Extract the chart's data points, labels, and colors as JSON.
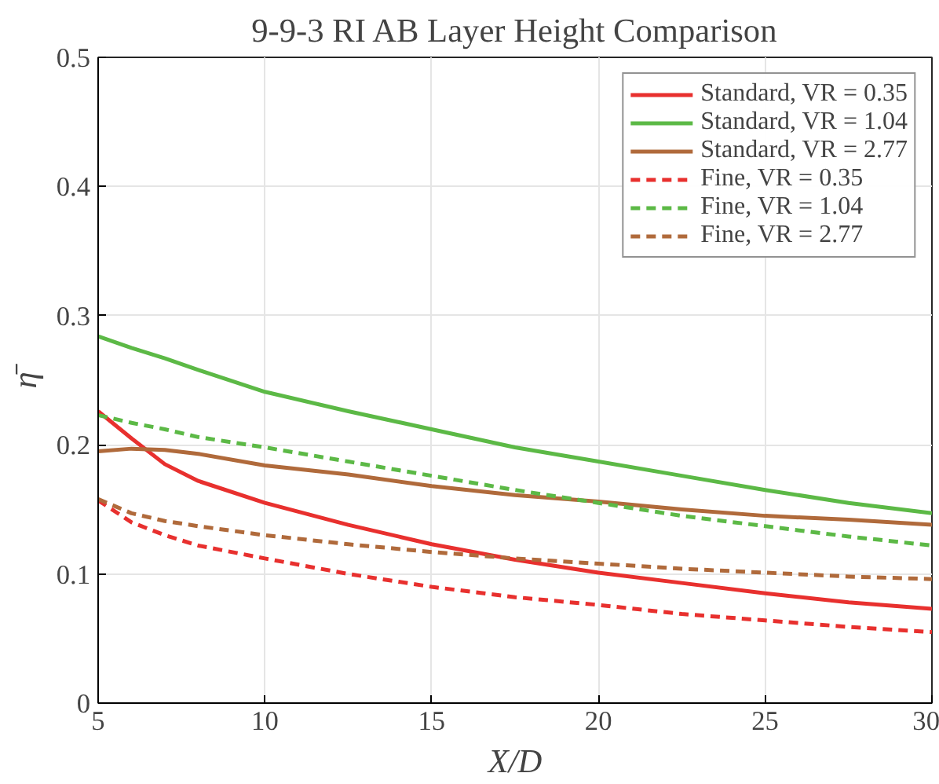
{
  "chart_data": {
    "type": "line",
    "title": "9-9-3 RI AB Layer Height Comparison",
    "xlabel": "X/D",
    "ylabel": "η̄",
    "x": [
      5,
      6,
      7,
      8,
      10,
      12.5,
      15,
      17.5,
      20,
      22.5,
      25,
      27.5,
      30
    ],
    "xlim": [
      5,
      30
    ],
    "xticks": [
      5,
      10,
      15,
      20,
      25,
      30
    ],
    "ylim": [
      0,
      0.5
    ],
    "yticks": [
      0,
      0.1,
      0.2,
      0.3,
      0.4,
      0.5
    ],
    "grid": true,
    "legend": "top right",
    "marker": "none",
    "series": [
      {
        "name": "Standard, VR = 0.35",
        "color": "#e8302e",
        "line_style": "solid",
        "values": [
          0.226,
          0.205,
          0.185,
          0.172,
          0.155,
          0.138,
          0.123,
          0.111,
          0.101,
          0.093,
          0.085,
          0.078,
          0.073
        ]
      },
      {
        "name": "Standard, VR = 1.04",
        "color": "#5cb946",
        "line_style": "solid",
        "values": [
          0.284,
          0.275,
          0.267,
          0.258,
          0.241,
          0.226,
          0.212,
          0.198,
          0.187,
          0.176,
          0.165,
          0.155,
          0.147
        ]
      },
      {
        "name": "Standard, VR = 2.77",
        "color": "#b06a3b",
        "line_style": "solid",
        "values": [
          0.195,
          0.197,
          0.196,
          0.193,
          0.184,
          0.177,
          0.168,
          0.161,
          0.156,
          0.15,
          0.145,
          0.142,
          0.138
        ]
      },
      {
        "name": "Fine, VR = 0.35",
        "color": "#e8302e",
        "line_style": "dashed",
        "values": [
          0.157,
          0.14,
          0.13,
          0.122,
          0.112,
          0.1,
          0.09,
          0.082,
          0.076,
          0.069,
          0.064,
          0.059,
          0.055
        ]
      },
      {
        "name": "Fine, VR = 1.04",
        "color": "#5cb946",
        "line_style": "dashed",
        "values": [
          0.223,
          0.217,
          0.212,
          0.206,
          0.198,
          0.187,
          0.176,
          0.165,
          0.155,
          0.145,
          0.137,
          0.129,
          0.122
        ]
      },
      {
        "name": "Fine, VR = 2.77",
        "color": "#b06a3b",
        "line_style": "dashed",
        "values": [
          0.158,
          0.147,
          0.141,
          0.137,
          0.13,
          0.123,
          0.117,
          0.112,
          0.108,
          0.104,
          0.101,
          0.098,
          0.096
        ]
      }
    ]
  }
}
